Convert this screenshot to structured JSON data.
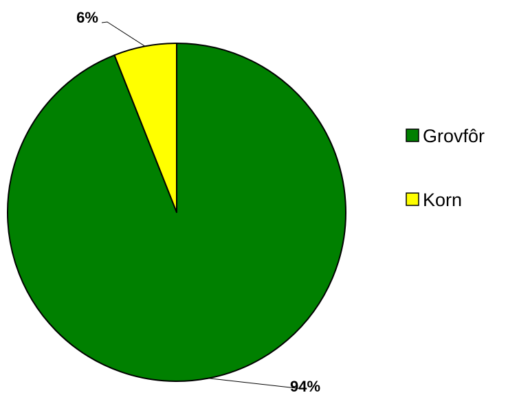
{
  "chart_data": {
    "type": "pie",
    "title": "",
    "slices": [
      {
        "label": "Grovfôr",
        "value": 94,
        "display": "94%",
        "color": "#008000"
      },
      {
        "label": "Korn",
        "value": 6,
        "display": "6%",
        "color": "#ffff00"
      }
    ],
    "legend": {
      "position": "right",
      "entries": [
        "Grovfôr",
        "Korn"
      ]
    },
    "start_angle_deg": 0,
    "direction": "clockwise"
  }
}
